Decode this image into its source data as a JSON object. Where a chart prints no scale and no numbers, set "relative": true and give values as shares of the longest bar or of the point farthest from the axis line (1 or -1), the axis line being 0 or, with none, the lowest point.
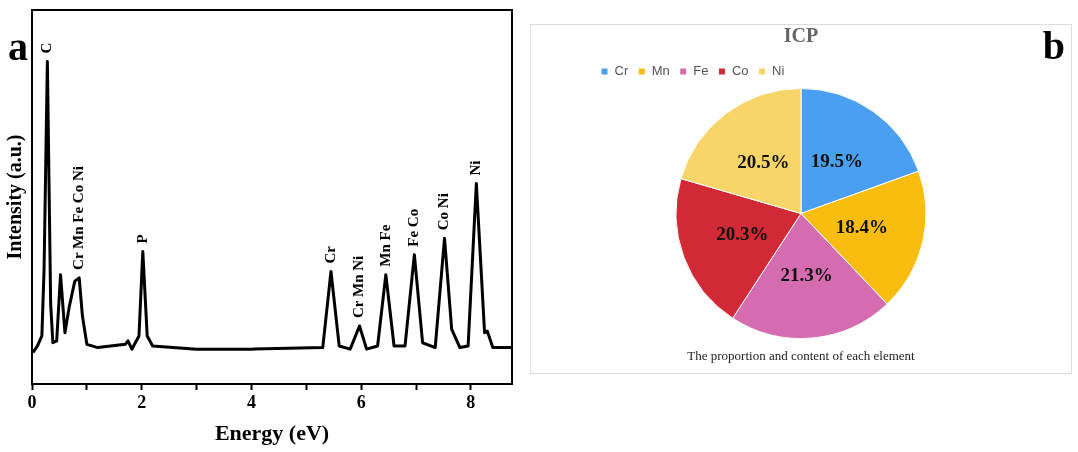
{
  "chart_data": [
    {
      "type": "line",
      "xlabel": "Energy (eV)",
      "ylabel": "Intensity (a.u.)",
      "relative": true,
      "tick_labels": "x",
      "grid": false,
      "legend": false,
      "marker": "none",
      "line_style": "solid",
      "xlim": [
        0,
        8.75
      ],
      "xticks": [
        0,
        {
          "value": 1,
          "label": null
        },
        2,
        {
          "value": 3,
          "label": null
        },
        4,
        {
          "value": 5,
          "label": null
        },
        6,
        {
          "value": 7,
          "label": null
        },
        8
      ],
      "series": [
        {
          "color": "#000000",
          "x": [
            0.02,
            0.1,
            0.18,
            0.22,
            0.28,
            0.34,
            0.38,
            0.45,
            0.52,
            0.6,
            0.68,
            0.78,
            0.86,
            0.92,
            1.0,
            1.2,
            1.7,
            1.75,
            1.82,
            1.95,
            2.02,
            2.1,
            2.2,
            3.0,
            4.0,
            5.3,
            5.45,
            5.6,
            5.8,
            5.97,
            6.1,
            6.3,
            6.45,
            6.6,
            6.8,
            6.97,
            7.12,
            7.35,
            7.52,
            7.65,
            7.8,
            7.95,
            8.1,
            8.25,
            8.3,
            8.4,
            8.75
          ],
          "values": [
            0.098,
            0.118,
            0.149,
            0.355,
            1.0,
            0.25,
            0.128,
            0.134,
            0.339,
            0.159,
            0.24,
            0.319,
            0.329,
            0.21,
            0.123,
            0.113,
            0.123,
            0.134,
            0.108,
            0.149,
            0.411,
            0.149,
            0.118,
            0.108,
            0.108,
            0.113,
            0.349,
            0.118,
            0.108,
            0.18,
            0.108,
            0.118,
            0.339,
            0.118,
            0.118,
            0.401,
            0.128,
            0.113,
            0.452,
            0.17,
            0.113,
            0.118,
            0.622,
            0.159,
            0.164,
            0.113,
            0.113
          ]
        }
      ],
      "annotations": [
        "a",
        {
          "text": "C",
          "x": 0.28,
          "y": 1.0
        },
        {
          "text": "Cr Mn Fe Co Ni",
          "x": 0.86,
          "y": 0.329
        },
        {
          "text": "P",
          "x": 2.02,
          "y": 0.411
        },
        {
          "text": "Cr",
          "x": 5.45,
          "y": 0.349
        },
        {
          "text": "Cr Mn Ni",
          "x": 5.97,
          "y": 0.18
        },
        {
          "text": "Mn Fe",
          "x": 6.45,
          "y": 0.339
        },
        {
          "text": "Fe Co",
          "x": 6.97,
          "y": 0.401
        },
        {
          "text": "Co Ni",
          "x": 7.52,
          "y": 0.452
        },
        {
          "text": "Ni",
          "x": 8.1,
          "y": 0.622
        }
      ]
    },
    {
      "type": "pie",
      "title": "ICP",
      "legend": "top left",
      "categories": [
        "Cr",
        "Mn",
        "Fe",
        "Co",
        "Ni"
      ],
      "values": [
        19.5,
        18.4,
        21.3,
        20.3,
        20.5
      ],
      "colors": [
        "#4a9ff0",
        "#f8bd0e",
        "#d56cb0",
        "#d12a36",
        "#f8d569"
      ],
      "value_labels": [
        "19.5%",
        "18.4%",
        "21.3%",
        "20.3%",
        "20.5%"
      ],
      "annotations": [
        "b",
        "The proportion and content of each element"
      ]
    }
  ]
}
